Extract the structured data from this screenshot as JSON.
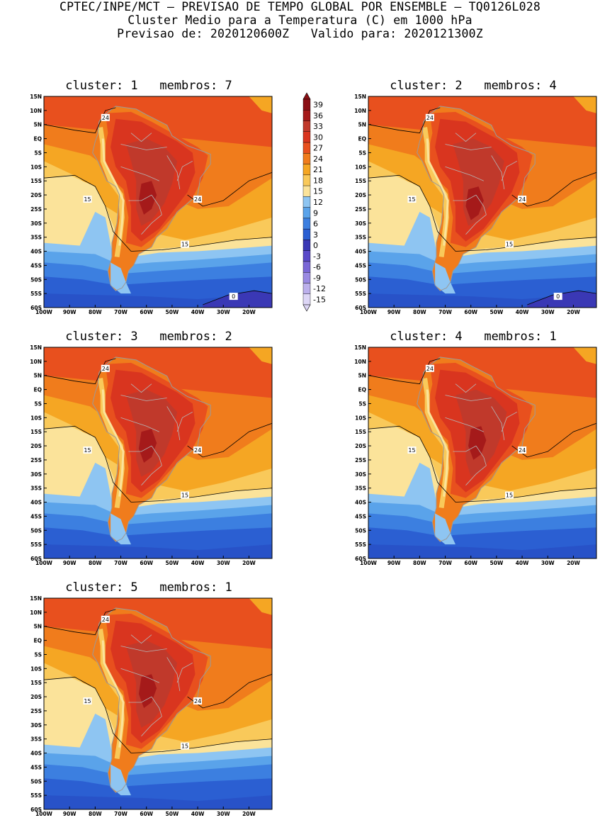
{
  "header": {
    "line1": "CPTEC/INPE/MCT – PREVISAO DE TEMPO GLOBAL POR ENSEMBLE – TQ0126L028",
    "line2": "Cluster Medio para a Temperatura (C) em 1000 hPa",
    "line3": "Previsao de: 2020120600Z   Valido para: 2020121300Z"
  },
  "panels": [
    {
      "id": 1,
      "title": "cluster: 1   membros: 7"
    },
    {
      "id": 2,
      "title": "cluster: 2   membros: 4"
    },
    {
      "id": 3,
      "title": "cluster: 3   membros: 2"
    },
    {
      "id": 4,
      "title": "cluster: 4   membros: 1"
    },
    {
      "id": 5,
      "title": "cluster: 5   membros: 1"
    }
  ],
  "lat_labels": [
    "15N",
    "10N",
    "5N",
    "EQ",
    "5S",
    "10S",
    "15S",
    "20S",
    "25S",
    "30S",
    "35S",
    "40S",
    "45S",
    "50S",
    "55S",
    "60S"
  ],
  "lon_labels": [
    "100W",
    "90W",
    "80W",
    "70W",
    "60W",
    "50W",
    "40W",
    "30W",
    "20W"
  ],
  "contour_labels": {
    "warm": "24",
    "mild": "15",
    "cold": "0"
  },
  "colorbar": {
    "levels": [
      "39",
      "36",
      "33",
      "30",
      "27",
      "24",
      "21",
      "18",
      "15",
      "12",
      "9",
      "6",
      "3",
      "0",
      "-3",
      "-6",
      "-9",
      "-12",
      "-15"
    ],
    "colors": [
      "#8b0f14",
      "#a51a1a",
      "#c0392b",
      "#d9351f",
      "#e8501e",
      "#f07c1c",
      "#f5a623",
      "#f9c95a",
      "#fbe39a",
      "#8ec5f2",
      "#5aa3ea",
      "#3c7fe0",
      "#2b5fd2",
      "#3a38b5",
      "#5a49c9",
      "#7a67d6",
      "#9a8ae2",
      "#bcb0ec",
      "#ddd6f6"
    ],
    "colors_bar_order": [
      "#8b0f14",
      "#a51a1a",
      "#c0392b",
      "#d9351f",
      "#e8501e",
      "#f07c1c",
      "#f5a623",
      "#f9c95a",
      "#fbe39a",
      "#8ec5f2",
      "#5aa3ea",
      "#3c7fe0",
      "#2b5fd2",
      "#3a38b5",
      "#5a49c9",
      "#7a67d6",
      "#9a8ae2",
      "#bcb0ec",
      "#ddd6f6"
    ]
  }
}
